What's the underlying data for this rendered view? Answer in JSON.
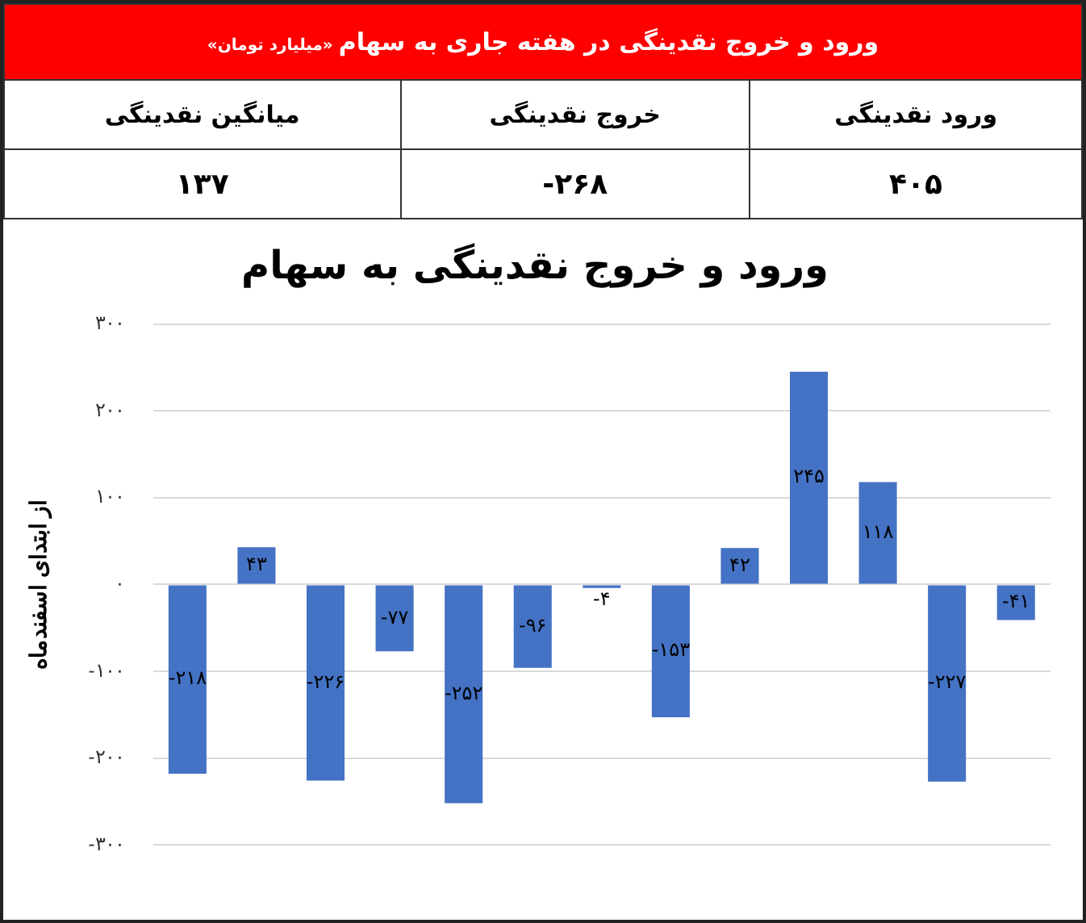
{
  "chart_data": [
    {
      "type": "other",
      "title": "ورود  و خروج نقدینگی در هفته جاری به سهام",
      "subtitle": "«میلیارد تومان»",
      "categories": [
        "میانگین نقدینگی",
        "خروج نقدینگی",
        "ورود نقدینگی"
      ],
      "value_labels": [
        "۱۳۷",
        "-۲۶۸",
        "۴۰۵"
      ]
    },
    {
      "type": "bar",
      "title": "ورود و خروج نقدینگی به سهام",
      "ylabel": "از ابتدای اسفندماه",
      "color": "#4472c4",
      "categories": [
        null,
        null,
        null,
        null,
        null,
        null,
        null,
        null,
        null,
        null,
        null,
        null,
        null
      ],
      "values": [
        -218,
        43,
        -226,
        -77,
        -252,
        -96,
        -4,
        -153,
        42,
        245,
        118,
        -227,
        -41
      ],
      "value_labels": [
        "-۲۱۸",
        "۴۳",
        "-۲۲۶",
        "-۷۷",
        "-۲۵۲",
        "-۹۶",
        "-۴",
        "-۱۵۳",
        "۴۲",
        "۲۴۵",
        "۱۱۸",
        "-۲۲۷",
        "-۴۱"
      ],
      "ylim": [
        -300,
        300
      ],
      "yticks": [
        {
          "value": -300,
          "label": "-۳۰۰"
        },
        {
          "value": -200,
          "label": "-۲۰۰"
        },
        {
          "value": -100,
          "label": "-۱۰۰"
        },
        {
          "value": 0,
          "label": "۰"
        },
        {
          "value": 100,
          "label": "۱۰۰"
        },
        {
          "value": 200,
          "label": "۲۰۰"
        },
        {
          "value": 300,
          "label": "۳۰۰"
        }
      ],
      "grid": "y"
    }
  ]
}
